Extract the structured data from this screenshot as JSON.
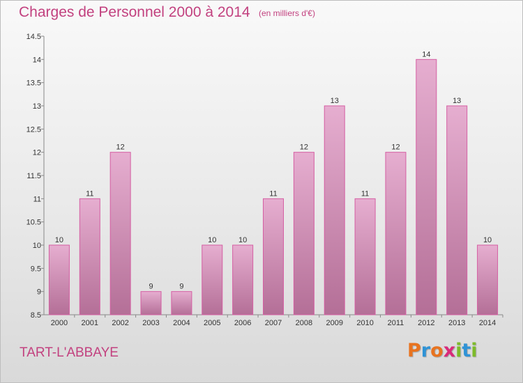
{
  "header": {
    "title": "Charges de Personnel 2000 à 2014",
    "subtitle": "(en milliers d'€)"
  },
  "footer": {
    "commune": "TART-L'ABBAYE",
    "logo_letters": [
      {
        "char": "P",
        "color": "#e8731f"
      },
      {
        "char": "r",
        "color": "#2f93d6"
      },
      {
        "char": "o",
        "color": "#e8731f"
      },
      {
        "char": "x",
        "color": "#d92a7a"
      },
      {
        "char": "i",
        "color": "#7dbb2a"
      },
      {
        "char": "t",
        "color": "#2f93d6"
      },
      {
        "char": "i",
        "color": "#7dbb2a"
      }
    ]
  },
  "colors": {
    "bar_top": "#e6aed0",
    "bar_bottom": "#b46f97",
    "bar_stroke": "#d55fa3",
    "title": "#c2417f"
  },
  "chart_data": {
    "type": "bar",
    "categories": [
      "2000",
      "2001",
      "2002",
      "2003",
      "2004",
      "2005",
      "2006",
      "2007",
      "2008",
      "2009",
      "2010",
      "2011",
      "2012",
      "2013",
      "2014"
    ],
    "values": [
      10,
      11,
      12,
      9,
      9,
      10,
      10,
      11,
      12,
      13,
      11,
      12,
      14,
      13,
      10
    ],
    "data_labels": [
      "10",
      "11",
      "12",
      "9",
      "9",
      "10",
      "10",
      "11",
      "12",
      "13",
      "11",
      "12",
      "14",
      "13",
      "10"
    ],
    "ylim": [
      8.5,
      14.5
    ],
    "yticks": [
      8.5,
      9,
      9.5,
      10,
      10.5,
      11,
      11.5,
      12,
      12.5,
      13,
      13.5,
      14,
      14.5
    ],
    "ytick_labels": [
      "8.5",
      "9",
      "9.5",
      "10",
      "10.5",
      "11",
      "11.5",
      "12",
      "12.5",
      "13",
      "13.5",
      "14",
      "14.5"
    ],
    "grid": false,
    "legend": "none"
  }
}
